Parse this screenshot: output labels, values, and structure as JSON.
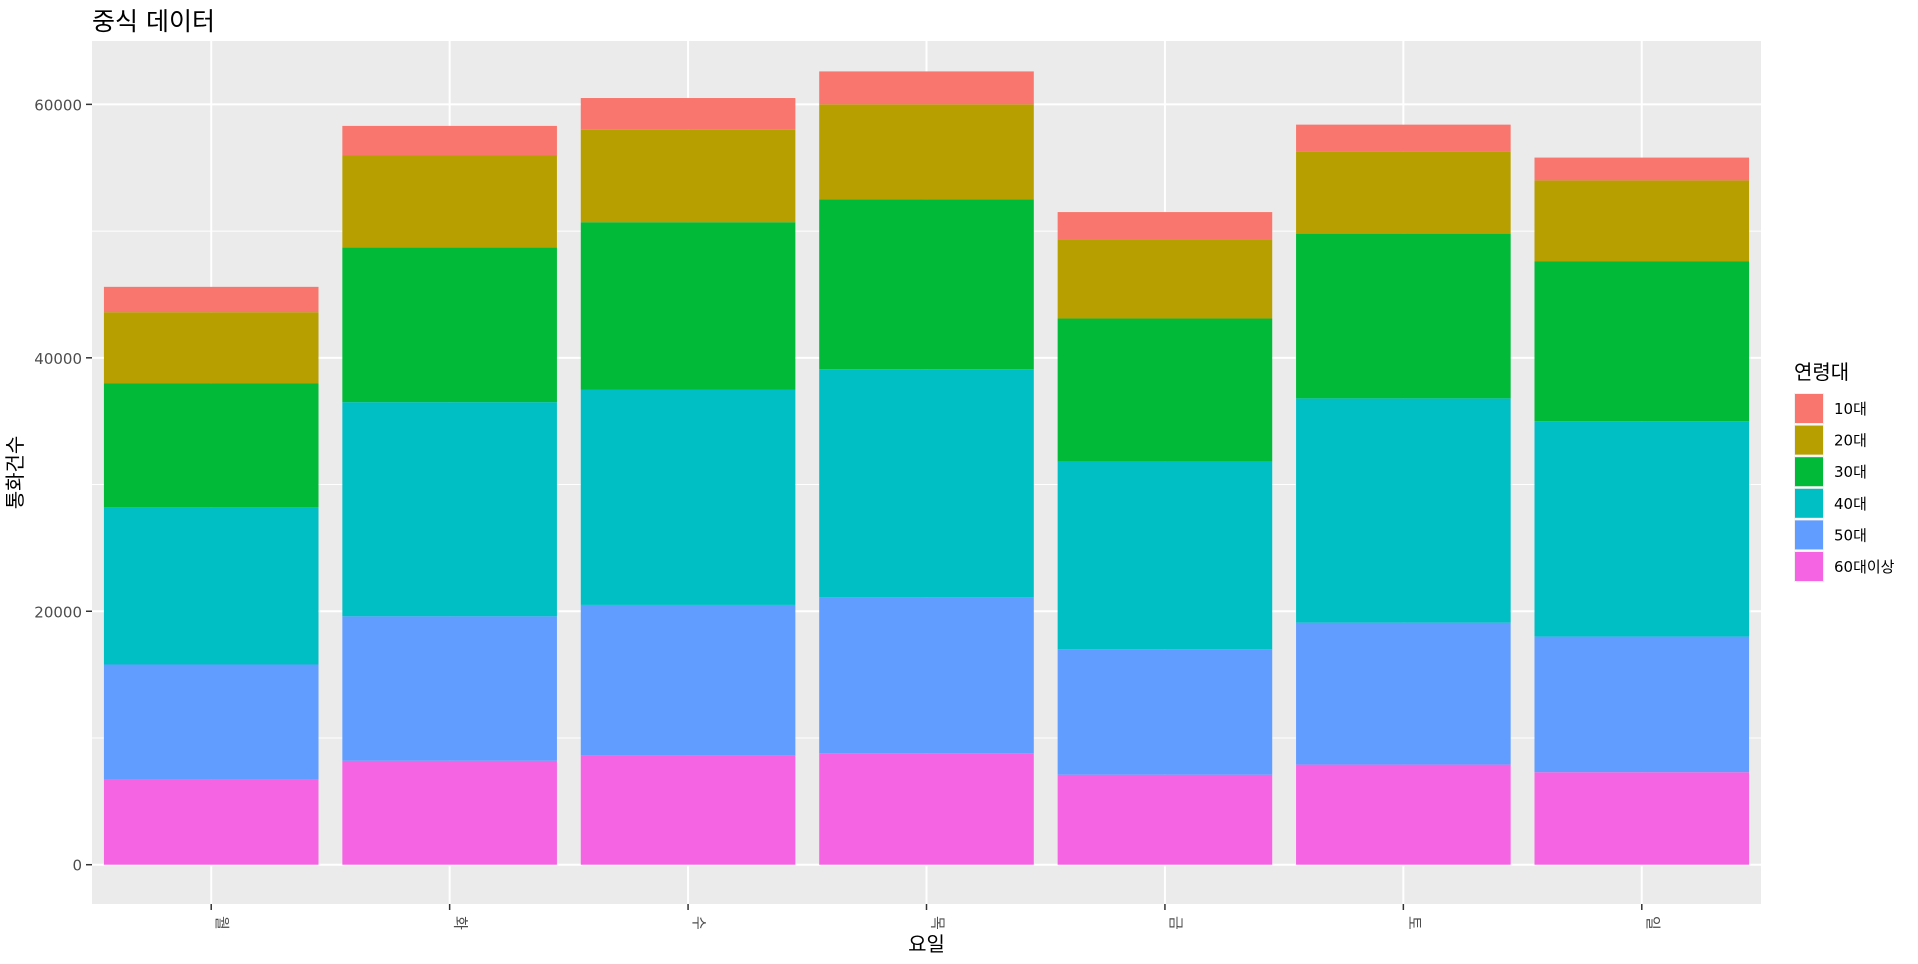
{
  "chart_data": {
    "type": "bar",
    "stacked": true,
    "title": "중식 데이터",
    "xlabel": "요일",
    "ylabel": "통화건수",
    "categories": [
      "월",
      "화",
      "수",
      "목",
      "금",
      "토",
      "일"
    ],
    "ylim": [
      -3100,
      65000
    ],
    "yticks": [
      0,
      20000,
      40000,
      60000
    ],
    "ytick_labels": [
      "0",
      "20000",
      "40000",
      "60000"
    ],
    "grid": true,
    "legend_position": "right",
    "legend_title": "연령대",
    "series": [
      {
        "name": "60대이상",
        "color": "#F564E3",
        "values": [
          6700,
          8200,
          8600,
          8800,
          7100,
          7900,
          7300
        ]
      },
      {
        "name": "50대",
        "color": "#619CFF",
        "values": [
          9100,
          11400,
          11900,
          12300,
          9900,
          11200,
          10700
        ]
      },
      {
        "name": "40대",
        "color": "#00BFC4",
        "values": [
          12400,
          16900,
          17000,
          18000,
          14800,
          17700,
          17000
        ]
      },
      {
        "name": "30대",
        "color": "#00BA38",
        "values": [
          9800,
          12200,
          13200,
          13400,
          11300,
          13000,
          12600
        ]
      },
      {
        "name": "20대",
        "color": "#B79F00",
        "values": [
          5600,
          7300,
          7300,
          7500,
          6200,
          6500,
          6400
        ]
      },
      {
        "name": "10대",
        "color": "#F8766D",
        "values": [
          2000,
          2300,
          2500,
          2600,
          2200,
          2100,
          1800
        ]
      }
    ],
    "legend_order": [
      "10대",
      "20대",
      "30대",
      "40대",
      "50대",
      "60대이상"
    ]
  }
}
